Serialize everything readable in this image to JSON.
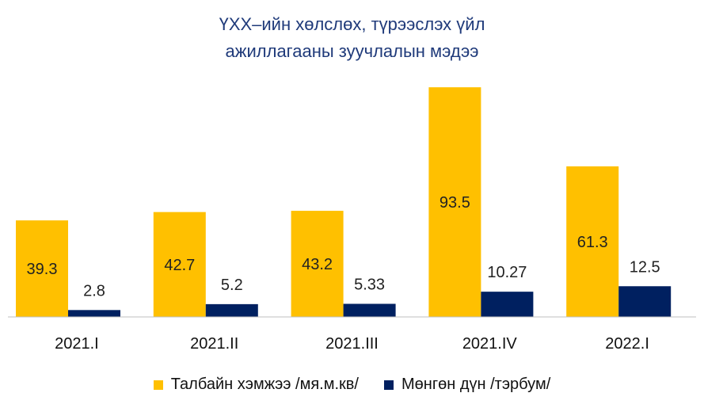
{
  "chart_data": {
    "type": "bar",
    "title_line1": "ҮХХ–ийн хөлслөх, түрээслэх үйл",
    "title_line2": "ажиллагааны зуучлалын мэдээ",
    "categories": [
      "2021.I",
      "2021.II",
      "2021.III",
      "2021.IV",
      "2022.I"
    ],
    "series": [
      {
        "name": "Талбайн хэмжээ /мя.м.кв/",
        "values": [
          39.3,
          42.7,
          43.2,
          93.5,
          61.3
        ],
        "labels": [
          "39.3",
          "42.7",
          "43.2",
          "93.5",
          "61.3"
        ],
        "color": "#FFC000"
      },
      {
        "name": "Мөнгөн дүн /тэрбум/",
        "values": [
          2.8,
          5.2,
          5.33,
          10.27,
          12.5
        ],
        "labels": [
          "2.8",
          "5.2",
          "5.33",
          "10.27",
          "12.5"
        ],
        "color": "#002060"
      }
    ],
    "ylim": [
      0,
      100
    ],
    "grid": false,
    "legend_position": "bottom"
  }
}
